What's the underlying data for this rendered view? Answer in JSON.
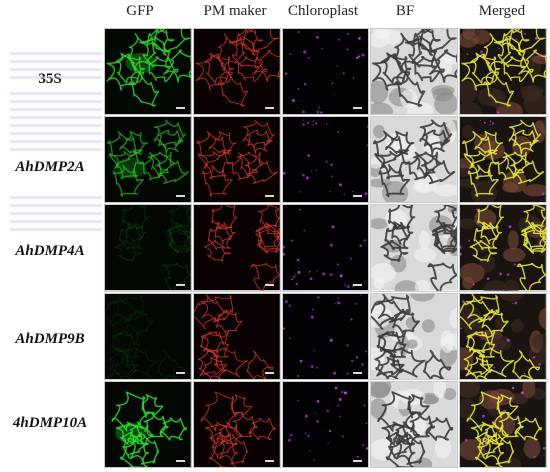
{
  "figure": {
    "columns": [
      {
        "label": "GFP",
        "channel": "gfp"
      },
      {
        "label": "PM maker",
        "channel": "pm"
      },
      {
        "label": "Chloroplast",
        "channel": "chloro"
      },
      {
        "label": "BF",
        "channel": "bf"
      },
      {
        "label": "Merged",
        "channel": "merged"
      }
    ],
    "rows": [
      {
        "label": "35S",
        "italic": false,
        "gfp_level": 0.85
      },
      {
        "label": "AhDMP2A",
        "italic": true,
        "gfp_level": 0.6
      },
      {
        "label": "AhDMP4A",
        "italic": true,
        "gfp_level": 0.12
      },
      {
        "label": "AhDMP9B",
        "italic": true,
        "gfp_level": 0.08
      },
      {
        "label": "4hDMP10A",
        "italic": true,
        "gfp_level": 0.9
      }
    ],
    "colors": {
      "gfp": "#2edc2e",
      "pm": "#e23a2a",
      "chloro": "#c040e0",
      "bf_light": "#d9d9d9",
      "bf_dark": "#3a3a3a",
      "merged_membrane": "#e6e63a"
    }
  }
}
